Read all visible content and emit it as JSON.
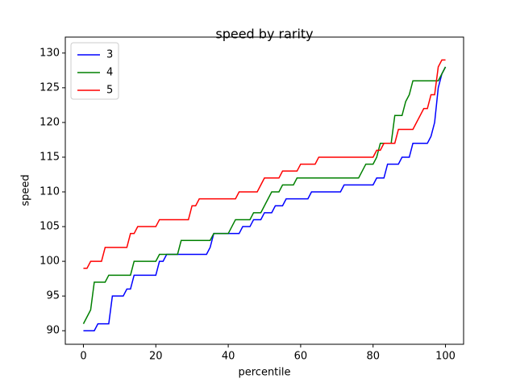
{
  "chart_data": {
    "type": "line",
    "title": "speed by rarity",
    "xlabel": "percentile",
    "ylabel": "speed",
    "x": [
      0,
      1,
      2,
      3,
      4,
      5,
      6,
      7,
      8,
      9,
      10,
      11,
      12,
      13,
      14,
      15,
      16,
      17,
      18,
      19,
      20,
      21,
      22,
      23,
      24,
      25,
      26,
      27,
      28,
      29,
      30,
      31,
      32,
      33,
      34,
      35,
      36,
      37,
      38,
      39,
      40,
      41,
      42,
      43,
      44,
      45,
      46,
      47,
      48,
      49,
      50,
      51,
      52,
      53,
      54,
      55,
      56,
      57,
      58,
      59,
      60,
      61,
      62,
      63,
      64,
      65,
      66,
      67,
      68,
      69,
      70,
      71,
      72,
      73,
      74,
      75,
      76,
      77,
      78,
      79,
      80,
      81,
      82,
      83,
      84,
      85,
      86,
      87,
      88,
      89,
      90,
      91,
      92,
      93,
      94,
      95,
      96,
      97,
      98,
      99,
      100
    ],
    "series": [
      {
        "name": "3",
        "color": "#0000ff",
        "values": [
          90,
          90,
          90,
          90,
          91,
          91,
          91,
          91,
          95,
          95,
          95,
          95,
          96,
          96,
          98,
          98,
          98,
          98,
          98,
          98,
          98,
          100,
          100,
          101,
          101,
          101,
          101,
          101,
          101,
          101,
          101,
          101,
          101,
          101,
          101,
          102,
          104,
          104,
          104,
          104,
          104,
          104,
          104,
          104,
          105,
          105,
          105,
          106,
          106,
          106,
          107,
          107,
          107,
          108,
          108,
          108,
          109,
          109,
          109,
          109,
          109,
          109,
          109,
          110,
          110,
          110,
          110,
          110,
          110,
          110,
          110,
          110,
          111,
          111,
          111,
          111,
          111,
          111,
          111,
          111,
          111,
          112,
          112,
          112,
          114,
          114,
          114,
          114,
          115,
          115,
          115,
          117,
          117,
          117,
          117,
          117,
          118,
          120,
          125,
          127,
          128
        ]
      },
      {
        "name": "4",
        "color": "#008000",
        "values": [
          91,
          92,
          93,
          97,
          97,
          97,
          97,
          98,
          98,
          98,
          98,
          98,
          98,
          98,
          100,
          100,
          100,
          100,
          100,
          100,
          100,
          101,
          101,
          101,
          101,
          101,
          101,
          103,
          103,
          103,
          103,
          103,
          103,
          103,
          103,
          103,
          104,
          104,
          104,
          104,
          104,
          105,
          106,
          106,
          106,
          106,
          106,
          107,
          107,
          107,
          108,
          109,
          110,
          110,
          110,
          111,
          111,
          111,
          111,
          112,
          112,
          112,
          112,
          112,
          112,
          112,
          112,
          112,
          112,
          112,
          112,
          112,
          112,
          112,
          112,
          112,
          112,
          113,
          114,
          114,
          114,
          115,
          117,
          117,
          117,
          117,
          121,
          121,
          121,
          123,
          124,
          126,
          126,
          126,
          126,
          126,
          126,
          126,
          126,
          127,
          128
        ]
      },
      {
        "name": "5",
        "color": "#ff0000",
        "values": [
          99,
          99,
          100,
          100,
          100,
          100,
          102,
          102,
          102,
          102,
          102,
          102,
          102,
          104,
          104,
          105,
          105,
          105,
          105,
          105,
          105,
          106,
          106,
          106,
          106,
          106,
          106,
          106,
          106,
          106,
          108,
          108,
          109,
          109,
          109,
          109,
          109,
          109,
          109,
          109,
          109,
          109,
          109,
          110,
          110,
          110,
          110,
          110,
          110,
          111,
          112,
          112,
          112,
          112,
          112,
          113,
          113,
          113,
          113,
          113,
          114,
          114,
          114,
          114,
          114,
          115,
          115,
          115,
          115,
          115,
          115,
          115,
          115,
          115,
          115,
          115,
          115,
          115,
          115,
          115,
          115,
          116,
          116,
          117,
          117,
          117,
          117,
          119,
          119,
          119,
          119,
          119,
          120,
          121,
          122,
          122,
          124,
          124,
          128,
          129,
          129
        ]
      }
    ],
    "xlim": [
      -5,
      105
    ],
    "ylim": [
      88.05,
      132.3
    ],
    "xticks": [
      0,
      20,
      40,
      60,
      80,
      100
    ],
    "yticks": [
      90,
      95,
      100,
      105,
      110,
      115,
      120,
      125,
      130
    ],
    "legend": "upper left"
  }
}
